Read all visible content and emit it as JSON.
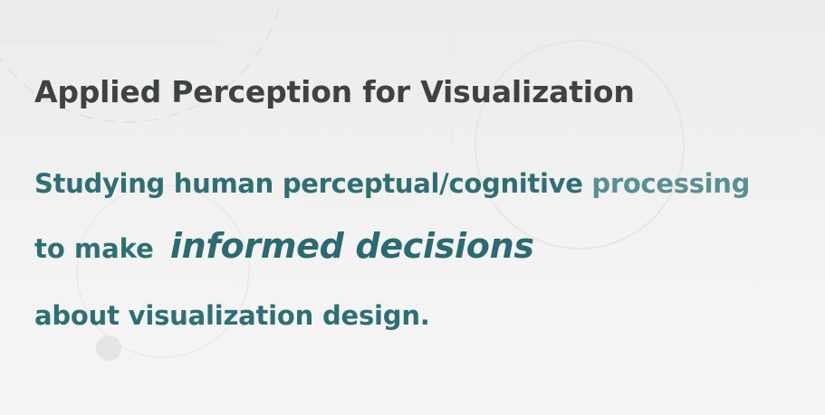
{
  "slide": {
    "title": "Applied Perception for Visualization",
    "line1_main": "Studying human perceptual/cognitive ",
    "line1_end": "processing",
    "line2_lead": "to make",
    "line2_emphasis": "informed decisions",
    "line3": "about visualization design."
  },
  "colors": {
    "title": "#3e4243",
    "body": "#2f6f74",
    "background": "#efefef"
  }
}
